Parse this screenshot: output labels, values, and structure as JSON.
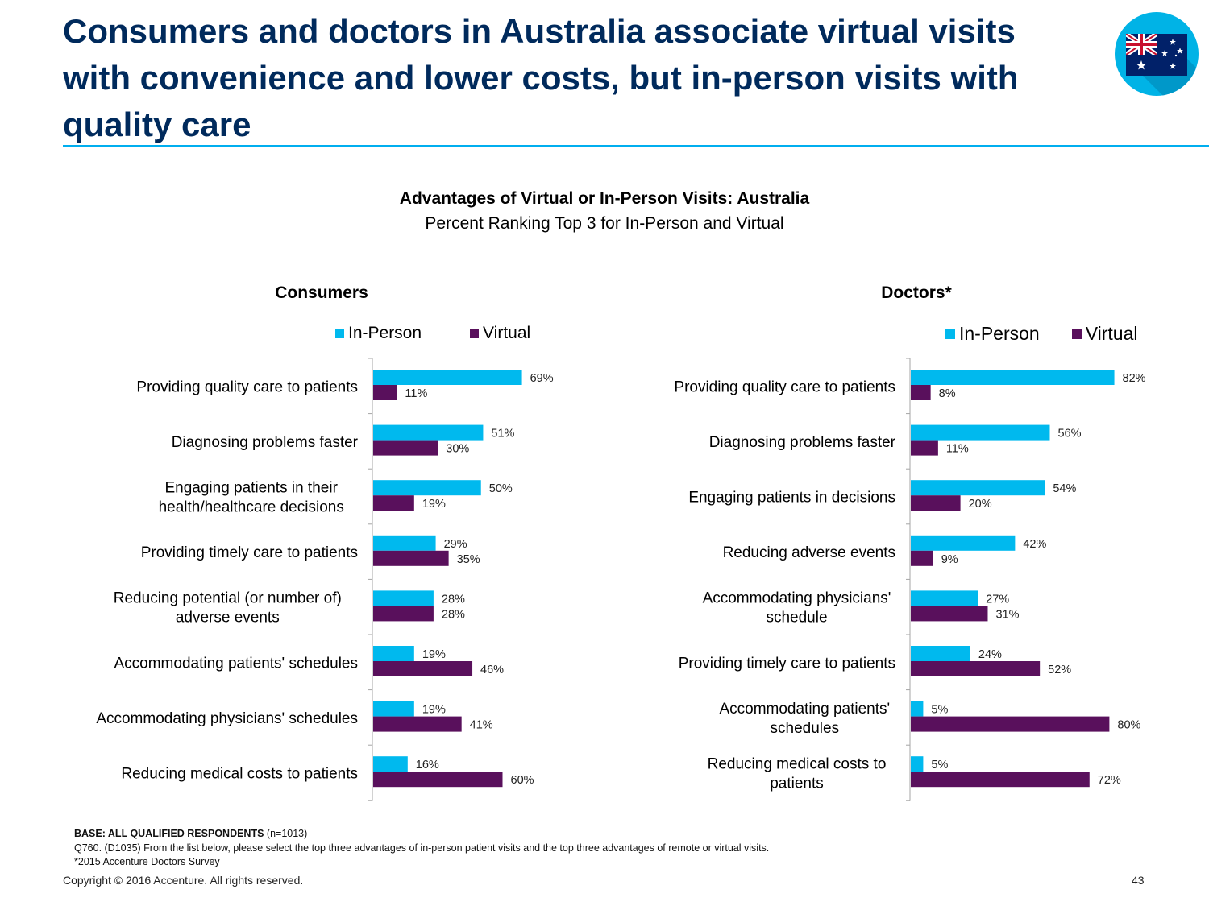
{
  "slide": {
    "title": "Consumers and doctors in Australia associate virtual visits with convenience and lower costs, but in-person visits with quality care",
    "chart_title": "Advantages of Virtual or In-Person Visits: Australia",
    "chart_subtitle": "Percent Ranking Top 3 for In-Person and Virtual",
    "flag_icon": "australia-flag-icon",
    "colors": {
      "title": "#002a5c",
      "in_person": "#00b9ee",
      "virtual": "#59105c",
      "rule": "#00aeef"
    }
  },
  "chart_data": [
    {
      "type": "bar",
      "orientation": "horizontal",
      "title": "Consumers",
      "categories": [
        [
          "Providing quality care to patients"
        ],
        [
          "Diagnosing problems faster"
        ],
        [
          "Engaging patients in their",
          "health/healthcare decisions"
        ],
        [
          "Providing timely care to patients"
        ],
        [
          "Reducing potential (or number of)",
          "adverse events"
        ],
        [
          "Accommodating patients' schedules"
        ],
        [
          "Accommodating physicians' schedules"
        ],
        [
          "Reducing medical costs to patients"
        ]
      ],
      "series": [
        {
          "name": "In-Person",
          "color": "#00b9ee",
          "values": [
            69,
            51,
            50,
            29,
            28,
            19,
            19,
            16
          ]
        },
        {
          "name": "Virtual",
          "color": "#59105c",
          "values": [
            11,
            30,
            19,
            35,
            28,
            46,
            41,
            60
          ]
        }
      ],
      "value_suffix": "%",
      "xlim": [
        0,
        100
      ],
      "legend": "top",
      "grid": false
    },
    {
      "type": "bar",
      "orientation": "horizontal",
      "title": "Doctors*",
      "categories": [
        [
          "Providing quality care to patients"
        ],
        [
          "Diagnosing problems faster"
        ],
        [
          "Engaging patients in decisions"
        ],
        [
          "Reducing adverse events"
        ],
        [
          "Accommodating physicians'",
          "schedule"
        ],
        [
          "Providing timely care to patients"
        ],
        [
          "Accommodating patients'",
          "schedules"
        ],
        [
          "Reducing medical costs to",
          "patients"
        ]
      ],
      "series": [
        {
          "name": "In-Person",
          "color": "#00b9ee",
          "values": [
            82,
            56,
            54,
            42,
            27,
            24,
            5,
            5
          ]
        },
        {
          "name": "Virtual",
          "color": "#59105c",
          "values": [
            8,
            11,
            20,
            9,
            31,
            52,
            80,
            72
          ]
        }
      ],
      "value_suffix": "%",
      "xlim": [
        0,
        100
      ],
      "legend": "top",
      "grid": false
    }
  ],
  "footnotes": {
    "base_bold": "BASE: ALL QUALIFIED RESPONDENTS",
    "base_n": " (n=1013)",
    "question": "Q760. (D1035)  From the list below, please select the top three advantages of in-person patient visits and the top three advantages of remote or virtual visits.",
    "source": "*2015 Accenture Doctors Survey"
  },
  "footer": {
    "copyright": "Copyright © 2016 Accenture. All rights reserved.",
    "page": "43"
  }
}
